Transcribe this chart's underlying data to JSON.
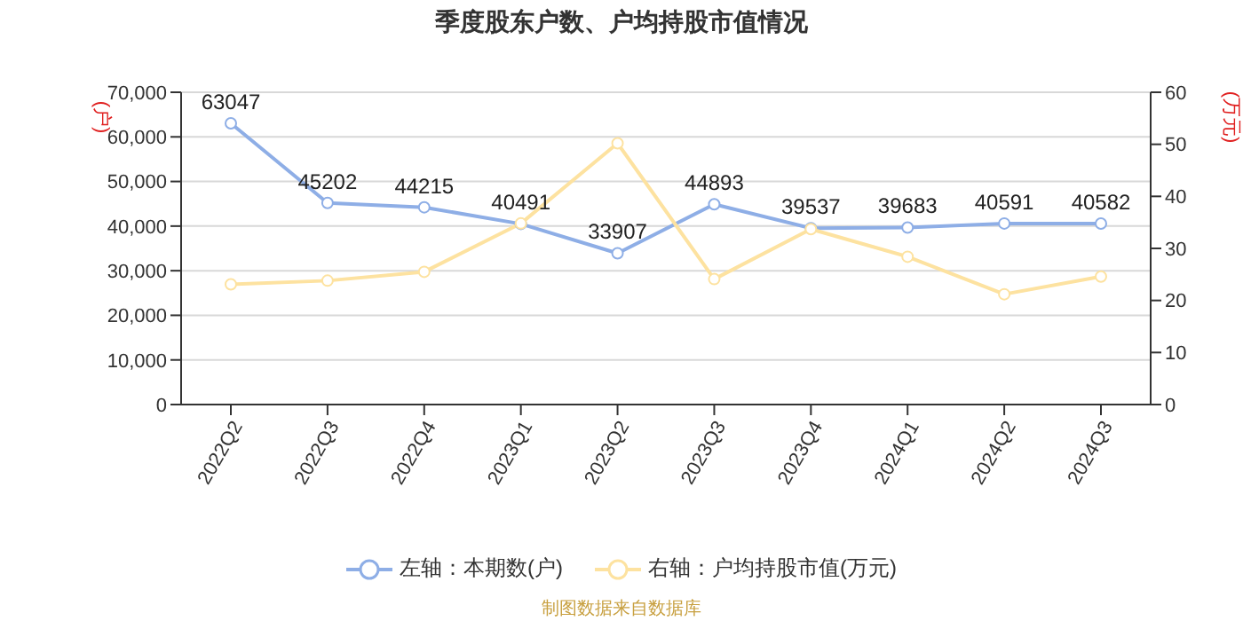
{
  "chart_data": {
    "type": "line",
    "title": "季度股东户数、户均持股市值情况",
    "ylabel": "(户)",
    "y2label": "(万元)",
    "categories": [
      "2022Q2",
      "2022Q3",
      "2022Q4",
      "2023Q1",
      "2023Q2",
      "2023Q3",
      "2023Q4",
      "2024Q1",
      "2024Q2",
      "2024Q3"
    ],
    "series": [
      {
        "name": "左轴：本期数(户)",
        "color": "#8eaee6",
        "values": [
          63047,
          45202,
          44215,
          40491,
          33907,
          44893,
          39537,
          39683,
          40591,
          40582
        ],
        "value_labels": [
          "63047",
          "45202",
          "44215",
          "40491",
          "33907",
          "44893",
          "39537",
          "39683",
          "40591",
          "40582"
        ]
      },
      {
        "name": "右轴：户均持股市值(万元)",
        "color": "#fde2a0",
        "axis": "y2",
        "values": [
          23.1,
          23.8,
          25.5,
          34.8,
          50.2,
          24.1,
          33.7,
          28.4,
          21.2,
          24.6
        ]
      }
    ],
    "ylim": [
      0,
      70000
    ],
    "yticks": [
      {
        "value": 0,
        "label": "0"
      },
      {
        "value": 10000,
        "label": "10,000"
      },
      {
        "value": 20000,
        "label": "20,000"
      },
      {
        "value": 30000,
        "label": "30,000"
      },
      {
        "value": 40000,
        "label": "40,000"
      },
      {
        "value": 50000,
        "label": "50,000"
      },
      {
        "value": 60000,
        "label": "60,000"
      },
      {
        "value": 70000,
        "label": "70,000"
      }
    ],
    "y2lim": [
      0,
      60
    ],
    "y2ticks": [
      0,
      10,
      20,
      30,
      40,
      50,
      60
    ],
    "grid": "y",
    "legend": "bottom",
    "marker": "circle",
    "line_style": "solid",
    "annotations": [
      "制图数据来自数据库"
    ]
  }
}
